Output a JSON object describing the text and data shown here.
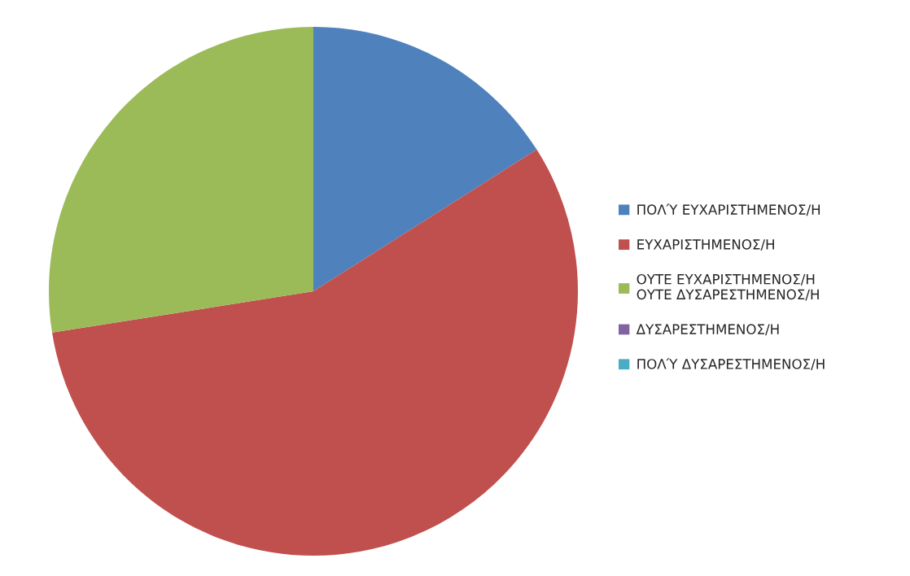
{
  "chart_data": {
    "type": "pie",
    "categories": [
      "ΠΟΛΎ ΕΥΧΑΡΙΣΤΗΜΕΝΟΣ/Η",
      "ΕΥΧΑΡΙΣΤΗΜΕΝΟΣ/Η",
      "ΟΥΤΕ ΕΥΧΑΡΙΣΤΗΜΕΝΟΣ/Η\nΟΥΤΕ ΔΥΣΑΡΕΣΤΗΜΕΝΟΣ/Η",
      "ΔΥΣΑΡΕΣΤΗΜΕΝΟΣ/Η",
      "ΠΟΛΎ ΔΥΣΑΡΕΣΤΗΜΕΝΟΣ/Η"
    ],
    "values": [
      16,
      56.5,
      27.5,
      0,
      0
    ],
    "colors": [
      "#4f81bd",
      "#c0504d",
      "#9bbb59",
      "#8064a2",
      "#4bacc6"
    ],
    "legend": "right"
  }
}
